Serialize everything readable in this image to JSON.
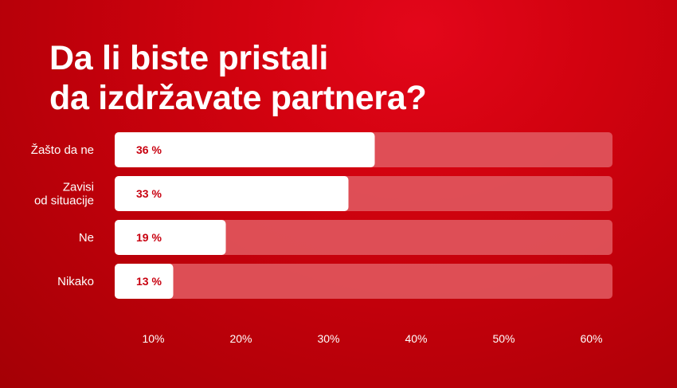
{
  "title_lines": [
    "Da li biste pristali",
    "da izdržavate partnera?"
  ],
  "colors": {
    "background": "#c1000b",
    "bar_fill": "#ffffff",
    "track": "#e0555c",
    "value_text": "#c8000f",
    "label_text": "#ffffff"
  },
  "chart_data": {
    "type": "bar",
    "orientation": "horizontal",
    "categories": [
      [
        "Žašto da ne"
      ],
      [
        "Zavisi",
        "od situacije"
      ],
      [
        "Ne"
      ],
      [
        "Nikako"
      ]
    ],
    "values": [
      36,
      33,
      19,
      13
    ],
    "value_labels": [
      "36 %",
      "33 %",
      "19 %",
      "13 %"
    ],
    "xticks": [
      10,
      20,
      30,
      40,
      50,
      60
    ],
    "xtick_labels": [
      "10%",
      "20%",
      "30%",
      "40%",
      "50%",
      "60%"
    ],
    "xlim": [
      0,
      62
    ],
    "grid": false,
    "legend": "none"
  }
}
